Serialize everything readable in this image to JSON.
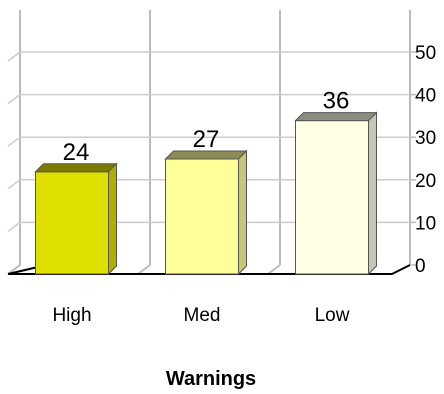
{
  "chart_data": {
    "type": "bar",
    "categories": [
      "High",
      "Med",
      "Low"
    ],
    "values": [
      24,
      27,
      36
    ],
    "data_labels": [
      "24",
      "27",
      "36"
    ],
    "xlabel": "Warnings",
    "ylabel": "",
    "ylim": [
      0,
      50
    ],
    "yticks": [
      "0",
      "10",
      "20",
      "30",
      "40",
      "50"
    ],
    "grid": true,
    "style": "3d",
    "colors": [
      "#e0e000",
      "#ffff99",
      "#ffffe6"
    ]
  }
}
